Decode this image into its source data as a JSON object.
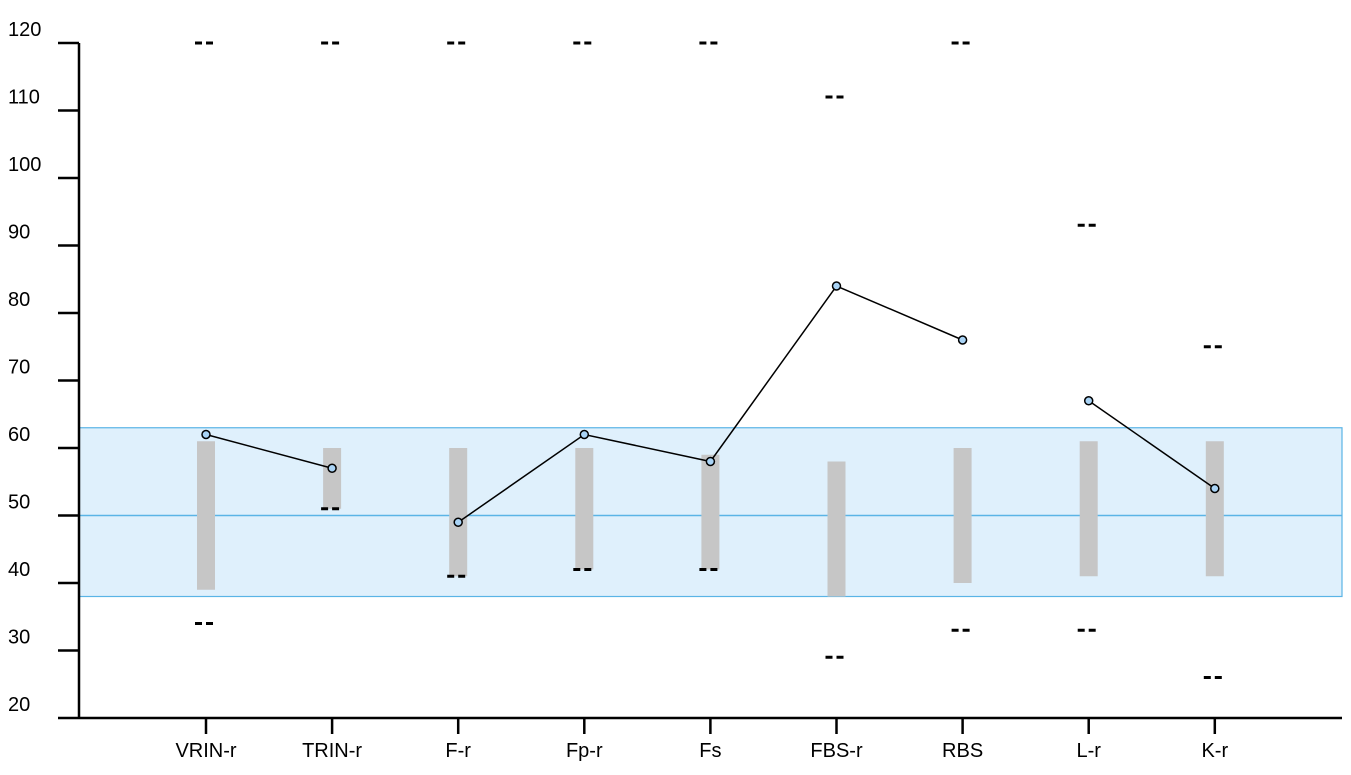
{
  "chart_data": {
    "type": "line",
    "title": "",
    "xlabel": "",
    "ylabel": "",
    "ylim": [
      20,
      120
    ],
    "yticks": [
      20,
      30,
      40,
      50,
      60,
      70,
      80,
      90,
      100,
      110,
      120
    ],
    "ytick_labels": [
      "20",
      "30",
      "40",
      "50",
      "60",
      "70",
      "80",
      "90",
      "100",
      "110",
      "120"
    ],
    "categories": [
      "VRIN-r",
      "TRIN-r",
      "F-r",
      "Fp-r",
      "Fs",
      "FBS-r",
      "RBS",
      "L-r",
      "K-r"
    ],
    "reference_band": {
      "low": 38,
      "high": 63,
      "mean": 50
    },
    "series": [
      {
        "values": [
          62,
          57,
          49,
          62,
          58,
          84,
          76,
          67,
          54
        ],
        "segments": [
          [
            0,
            1
          ],
          [
            2,
            3,
            4,
            5,
            6
          ],
          [
            7,
            8
          ]
        ]
      }
    ],
    "range_bars": [
      {
        "low": 39,
        "high": 61
      },
      {
        "low": 51,
        "high": 60
      },
      {
        "low": 41,
        "high": 60
      },
      {
        "low": 42,
        "high": 60
      },
      {
        "low": 42,
        "high": 59
      },
      {
        "low": 38,
        "high": 58
      },
      {
        "low": 40,
        "high": 60
      },
      {
        "low": 41,
        "high": 61
      },
      {
        "low": 41,
        "high": 61
      }
    ],
    "dash_markers": [
      [
        120,
        34
      ],
      [
        120,
        51
      ],
      [
        120,
        41
      ],
      [
        120,
        42
      ],
      [
        120,
        42
      ],
      [
        112,
        29
      ],
      [
        120,
        33
      ],
      [
        93,
        33
      ],
      [
        75,
        26
      ]
    ],
    "colors": {
      "band_fill": "#dff0fc",
      "band_stroke": "#5ab4e6",
      "range_bar": "#c6c6c6",
      "line": "#000000",
      "marker_fill": "#a9d3f5",
      "axis": "#000000"
    }
  }
}
